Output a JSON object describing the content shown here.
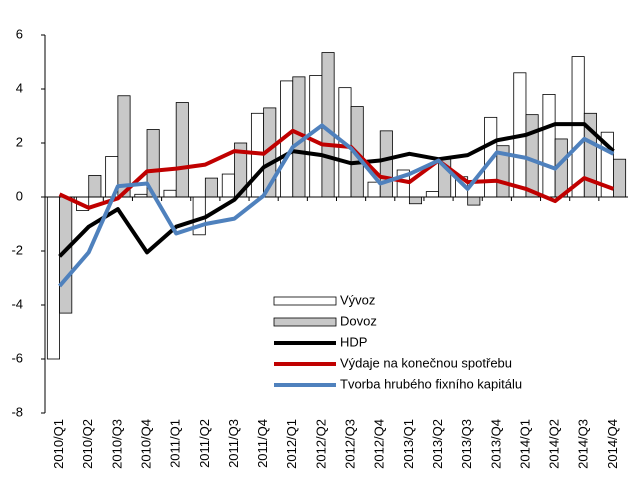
{
  "chart_data": {
    "type": "bar-line",
    "categories": [
      "2010/Q1",
      "2010/Q2",
      "2010/Q3",
      "2010/Q4",
      "2011/Q1",
      "2011/Q2",
      "2011/Q3",
      "2011/Q4",
      "2012/Q1",
      "2012/Q2",
      "2012/Q3",
      "2012/Q4",
      "2013/Q1",
      "2013/Q2",
      "2013/Q3",
      "2013/Q4",
      "2014/Q1",
      "2014/Q2",
      "2014/Q3",
      "2014/Q4"
    ],
    "series": [
      {
        "name": "Vývoz",
        "type": "bar",
        "color": "#ffffff",
        "values": [
          -6.0,
          -0.5,
          1.5,
          0.1,
          0.25,
          -1.4,
          0.85,
          3.1,
          4.3,
          4.5,
          4.05,
          0.55,
          1.0,
          0.2,
          0.75,
          2.95,
          4.6,
          3.8,
          5.2,
          2.4
        ]
      },
      {
        "name": "Dovoz",
        "type": "bar",
        "color": "#c8c8c8",
        "values": [
          -4.3,
          0.8,
          3.75,
          2.5,
          3.5,
          0.7,
          2.0,
          3.3,
          4.45,
          5.35,
          3.35,
          2.45,
          -0.25,
          1.4,
          -0.3,
          1.9,
          3.05,
          2.15,
          3.1,
          1.4
        ]
      },
      {
        "name": "HDP",
        "type": "line",
        "color": "#000000",
        "values": [
          -2.2,
          -1.1,
          -0.45,
          -2.05,
          -1.1,
          -0.75,
          -0.1,
          1.1,
          1.7,
          1.55,
          1.25,
          1.35,
          1.6,
          1.4,
          1.55,
          2.1,
          2.3,
          2.7,
          2.7,
          1.7
        ]
      },
      {
        "name": "Výdaje na konečnou spotřebu",
        "type": "line",
        "color": "#c00000",
        "values": [
          0.1,
          -0.4,
          -0.05,
          0.95,
          1.05,
          1.2,
          1.7,
          1.6,
          2.45,
          1.95,
          1.85,
          0.75,
          0.55,
          1.35,
          0.55,
          0.6,
          0.3,
          -0.15,
          0.7,
          0.3
        ]
      },
      {
        "name": "Tvorba hrubého fixního kapitálu",
        "type": "line",
        "color": "#4f81bd",
        "values": [
          -3.3,
          -2.05,
          0.4,
          0.5,
          -1.35,
          -1.0,
          -0.8,
          0.05,
          1.85,
          2.65,
          1.8,
          0.5,
          0.85,
          1.35,
          0.3,
          1.65,
          1.45,
          1.05,
          2.15,
          1.6
        ]
      }
    ],
    "ylim": [
      -8,
      6
    ],
    "yticks": [
      -8,
      -6,
      -4,
      -2,
      0,
      2,
      4,
      6
    ],
    "legend": "lower-center"
  }
}
